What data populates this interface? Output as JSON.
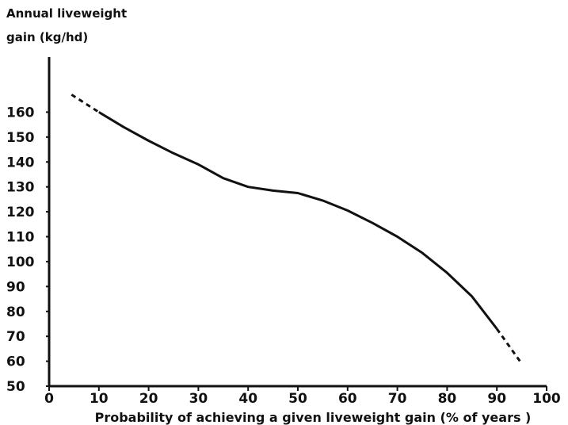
{
  "chart_data": {
    "type": "line",
    "title": "",
    "ylabel_lines": [
      "Annual liveweight",
      "gain (kg/hd)"
    ],
    "xlabel": "Probability of achieving a given liveweight gain (% of years )",
    "xlim": [
      0,
      100
    ],
    "ylim": [
      50,
      170
    ],
    "xticks": [
      0,
      10,
      20,
      30,
      40,
      50,
      60,
      70,
      80,
      90,
      100
    ],
    "yticks": [
      50,
      60,
      70,
      80,
      90,
      100,
      110,
      120,
      130,
      140,
      150,
      160
    ],
    "grid": false,
    "series": [
      {
        "style": "solid",
        "x": [
          10,
          15,
          20,
          25,
          30,
          35,
          40,
          45,
          50,
          55,
          60,
          65,
          70,
          75,
          80,
          85,
          90
        ],
        "y": [
          160,
          154,
          148.5,
          143.5,
          139,
          133.5,
          130,
          128.5,
          127.5,
          124.5,
          120.5,
          115.5,
          110,
          103.5,
          95.5,
          86,
          73
        ]
      },
      {
        "style": "dashed",
        "x": [
          4.5,
          10
        ],
        "y": [
          167,
          160
        ]
      },
      {
        "style": "dashed",
        "x": [
          90,
          95
        ],
        "y": [
          73,
          59
        ]
      }
    ],
    "line_color": "#111111"
  }
}
